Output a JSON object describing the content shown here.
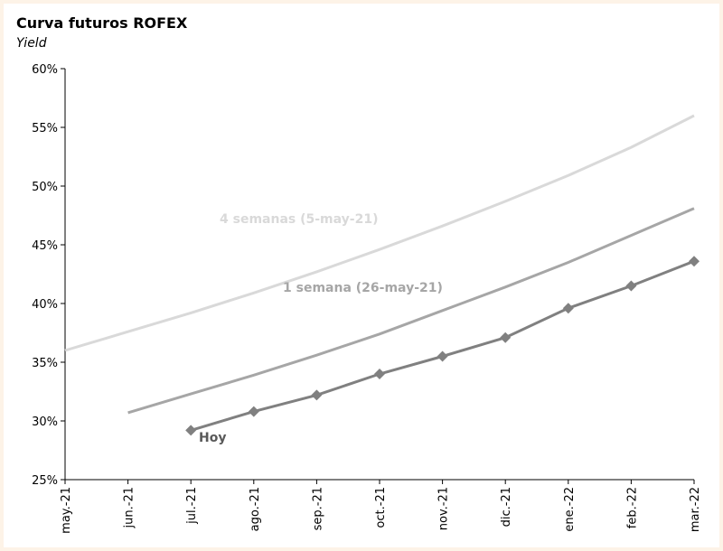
{
  "chart_data": {
    "type": "line",
    "title": "Curva futuros ROFEX",
    "y_label": "Yield",
    "categories": [
      "may.-21",
      "jun.-21",
      "jul.-21",
      "ago.-21",
      "sep.-21",
      "oct.-21",
      "nov.-21",
      "dic.-21",
      "ene.-22",
      "feb.-22",
      "mar.-22"
    ],
    "series": [
      {
        "name": "4 semanas (5-may-21)",
        "color": "#d9d9d9",
        "markers": false,
        "values": [
          36.0,
          37.6,
          39.2,
          40.9,
          42.7,
          44.6,
          46.6,
          48.7,
          50.9,
          53.3,
          56.0
        ]
      },
      {
        "name": "1 semana (26-may-21)",
        "color": "#a6a6a6",
        "markers": false,
        "values": [
          null,
          30.7,
          32.3,
          33.9,
          35.6,
          37.4,
          39.4,
          41.4,
          43.5,
          45.8,
          48.1
        ]
      },
      {
        "name": "Hoy",
        "color": "#808080",
        "markers": true,
        "values": [
          null,
          null,
          29.2,
          30.8,
          32.2,
          34.0,
          35.5,
          37.1,
          39.6,
          41.5,
          43.6
        ]
      }
    ],
    "ylim": [
      25,
      60
    ],
    "yticks": [
      {
        "value": 25,
        "label": "25%"
      },
      {
        "value": 30,
        "label": "30%"
      },
      {
        "value": 35,
        "label": "35%"
      },
      {
        "value": 40,
        "label": "40%"
      },
      {
        "value": 45,
        "label": "45%"
      },
      {
        "value": 50,
        "label": "50%"
      },
      {
        "value": 55,
        "label": "55%"
      },
      {
        "value": 60,
        "label": "60%"
      }
    ],
    "grid": false
  }
}
